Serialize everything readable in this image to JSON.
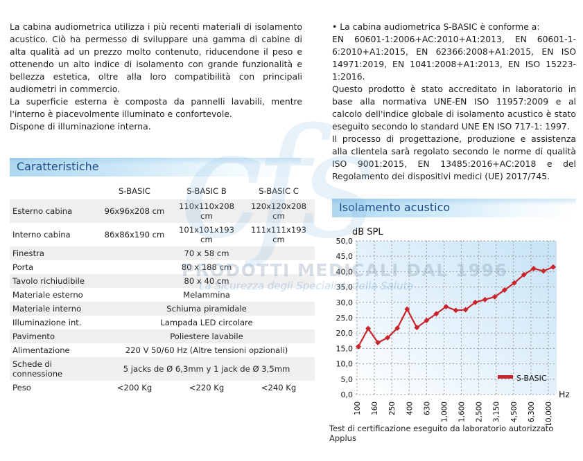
{
  "colors": {
    "accent_blue": "#1b4c8a",
    "heading_gradient": "#aed8f0",
    "table_stripe": "#efefef",
    "series_red": "#c9232b",
    "chart_bg_blue": "#c6e3f5",
    "grid_gray": "#999999"
  },
  "watermark": {
    "logo": "cfs",
    "line1": "PRODOTTI MEDICALI DAL 1996",
    "line2": "La Sicurezza degli Specialisti della Salute"
  },
  "left": {
    "intro": [
      "La cabina audiometrica utilizza i più recenti materiali di isolamento acustico. Ciò ha permesso di sviluppare una gamma di cabine di alta qualità ad un prezzo molto contenuto, riducendone il peso e ottenendo un alto indice di isolamento con grande funzionalità e bellezza estetica, oltre alla loro compatibilità con principali audiometri in commercio.",
      "La superficie esterna è composta da pannelli lavabili, mentre l'interno è piacevolmente illuminato e confortevole.",
      "Dispone di illuminazione interna."
    ],
    "section_title": "Caratteristiche",
    "table": {
      "columns": [
        "",
        "S-BASIC",
        "S-BASIC B",
        "S-BASIC C"
      ],
      "rows": [
        {
          "label": "Esterno cabina",
          "values": [
            "96x96x208 cm",
            "110x110x208 cm",
            "120x120x208 cm"
          ]
        },
        {
          "label": "Interno cabina",
          "values": [
            "86x86x190 cm",
            "101x101x193 cm",
            "111x111x193 cm"
          ]
        },
        {
          "label": "Finestra",
          "span": "70 x 58 cm"
        },
        {
          "label": "Porta",
          "span": "80 x 188 cm"
        },
        {
          "label": "Tavolo richiudibile",
          "span": "80 x 40 cm"
        },
        {
          "label": "Materiale esterno",
          "span": "Melammina"
        },
        {
          "label": "Materiale interno",
          "span": "Schiuma piramidale"
        },
        {
          "label": "Illuminazione int.",
          "span": "Lampada LED circolare"
        },
        {
          "label": "Pavimento",
          "span": "Poliestere lavabile"
        },
        {
          "label": "Alimentazione",
          "span": "220 V 50/60 Hz (Altre tensioni opzionali)"
        },
        {
          "label": "Schede di connessione",
          "span": "5 jacks de Ø 6,3mm y 1 jack de Ø 3,5mm"
        },
        {
          "label": "Peso",
          "values": [
            "<200 Kg",
            "<220 Kg",
            "<240 Kg"
          ]
        }
      ]
    }
  },
  "right": {
    "compliance": [
      "• La cabina audiometrica S-BASIC è conforme a:",
      "EN 60601-1:2006+AC:2010+A1:2013, EN 60601-1-6:2010+A1:2015, EN 62366:2008+A1:2015, EN ISO 14971:2019, EN 1041:2008+A1:2013, EN ISO 15223-1:2016.",
      "Questo prodotto è stato accreditato in laboratorio in base alla normativa UNE-EN ISO 11957:2009 e al calcolo dell'indice globale di isolamento acustico è stato eseguito secondo lo standard UNE EN ISO 717-1: 1997.",
      "Il processo di progettazione, produzione e assistenza alla clientela sarà regolato secondo le norme di qualità ISO 9001:2015, EN 13485:2016+AC:2018 e del Regolamento dei dispositivi medici (UE) 2017/745."
    ],
    "section_title": "Isolamento acustico",
    "caption": "Test di certificazione eseguito da laboratorio autorizzato Applus"
  },
  "chart_data": {
    "type": "line",
    "title": "",
    "ylabel": "dB SPL",
    "xlabel": "Hz",
    "ylim": [
      0,
      50
    ],
    "ytick_labels": [
      "50,0",
      "45,0",
      "40,0",
      "35,0",
      "30,0",
      "25,0",
      "20,0",
      "15,0",
      "10,0",
      "5,0",
      "0,0"
    ],
    "xtick_labels": [
      "100",
      "160",
      "250",
      "400",
      "630",
      "1,000",
      "1,600",
      "2,500",
      "3,150",
      "4,500",
      "6,300",
      "10,000"
    ],
    "grid": "dashed",
    "legend": {
      "label": "S-BASIC",
      "position": "inside-bottom-right"
    },
    "series": [
      {
        "name": "S-BASIC",
        "color": "#c9232b",
        "values": [
          15.6,
          21.5,
          16.9,
          18.5,
          21.6,
          27.8,
          21.8,
          24.1,
          26.3,
          28.6,
          27.4,
          27.6,
          30.0,
          30.9,
          31.8,
          34.0,
          36.3,
          39.0,
          41.0,
          40.2,
          41.5
        ]
      }
    ]
  }
}
